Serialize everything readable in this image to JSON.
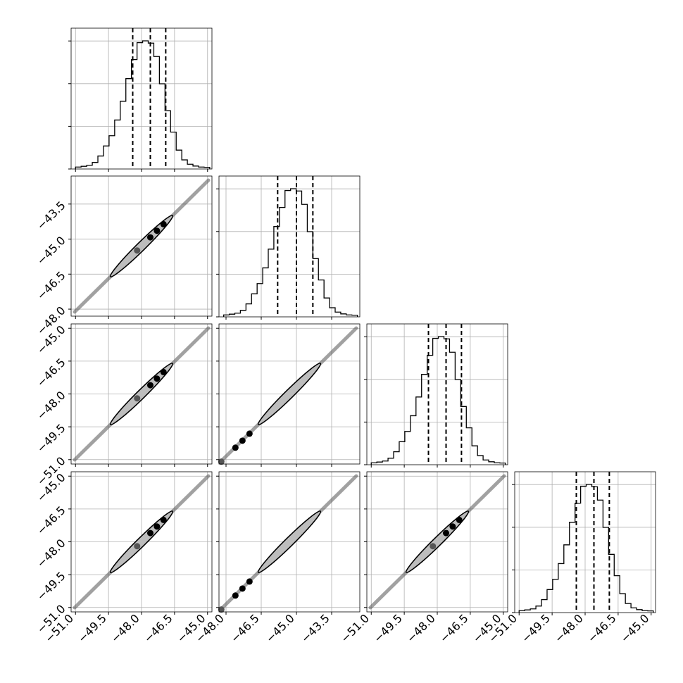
{
  "chart_data": {
    "type": "corner",
    "title": "",
    "n_params": 4,
    "colors": {
      "line": "#000000",
      "grid": "#b0b0b0",
      "scatter": "#555555"
    },
    "grid": true,
    "ranges": [
      [
        -51.2,
        -44.8
      ],
      [
        -48.3,
        -42.3
      ],
      [
        -51.2,
        -44.8
      ],
      [
        -51.2,
        -44.8
      ]
    ],
    "ticks": [
      [
        "−51.0",
        "−49.5",
        "−48.0",
        "−46.5",
        "−45.0"
      ],
      [
        "−48.0",
        "−46.5",
        "−45.0",
        "−43.5"
      ],
      [
        "−51.0",
        "−49.5",
        "−48.0",
        "−46.5",
        "−45.0"
      ],
      [
        "−51.0",
        "−49.5",
        "−48.0",
        "−46.5",
        "−45.0"
      ]
    ],
    "tick_values": [
      [
        -51.0,
        -49.5,
        -48.0,
        -46.5,
        -45.0
      ],
      [
        -48.0,
        -46.5,
        -45.0,
        -43.5
      ],
      [
        -51.0,
        -49.5,
        -48.0,
        -46.5,
        -45.0
      ],
      [
        -51.0,
        -49.5,
        -48.0,
        -46.5,
        -45.0
      ]
    ],
    "quantiles": [
      [
        -48.4,
        -47.6,
        -46.9
      ],
      [
        -45.8,
        -45.0,
        -44.3
      ],
      [
        -48.4,
        -47.6,
        -46.9
      ],
      [
        -48.4,
        -47.6,
        -46.9
      ]
    ],
    "histograms": [
      {
        "edges": [
          -51.0,
          -44.9
        ],
        "counts": [
          0.2,
          0.5,
          0.9,
          2.0,
          4.5,
          8.4,
          12.4,
          18.5,
          25.8,
          34.6,
          42.0,
          48.6,
          49.3,
          48.4,
          43.2,
          32.6,
          22.1,
          13.8,
          6.8,
          3.0,
          1.3,
          0.6,
          0.2,
          0.1
        ]
      },
      {
        "edges": [
          -48.1,
          -42.4
        ],
        "counts": [
          0.2,
          0.5,
          0.9,
          2.0,
          4.5,
          8.4,
          12.4,
          18.5,
          25.8,
          34.6,
          42.0,
          48.6,
          49.3,
          48.4,
          43.2,
          32.6,
          22.1,
          13.8,
          6.8,
          3.0,
          1.3,
          0.6,
          0.2,
          0.1
        ]
      },
      {
        "edges": [
          -51.0,
          -44.9
        ],
        "counts": [
          0.2,
          0.5,
          0.9,
          2.0,
          4.5,
          8.4,
          12.4,
          18.5,
          25.8,
          34.6,
          42.0,
          48.6,
          49.3,
          48.4,
          43.2,
          32.6,
          22.1,
          13.8,
          6.8,
          3.0,
          1.3,
          0.6,
          0.2,
          0.1
        ]
      },
      {
        "edges": [
          -51.0,
          -44.9
        ],
        "counts": [
          0.2,
          0.5,
          0.9,
          2.0,
          4.5,
          8.4,
          12.4,
          18.5,
          25.8,
          34.6,
          42.0,
          48.6,
          49.3,
          48.4,
          43.2,
          32.6,
          22.1,
          13.8,
          6.8,
          3.0,
          1.3,
          0.6,
          0.2,
          0.1
        ]
      }
    ],
    "correlation_extent": {
      "x": [
        -51.0,
        -45.0
      ],
      "y_by_row": [
        [
          -48.1,
          -42.4
        ],
        [
          -51.0,
          -45.0
        ],
        [
          -51.0,
          -45.0
        ]
      ]
    },
    "core_points": [
      -48.2,
      -47.6,
      -47.3,
      -47.0
    ]
  }
}
